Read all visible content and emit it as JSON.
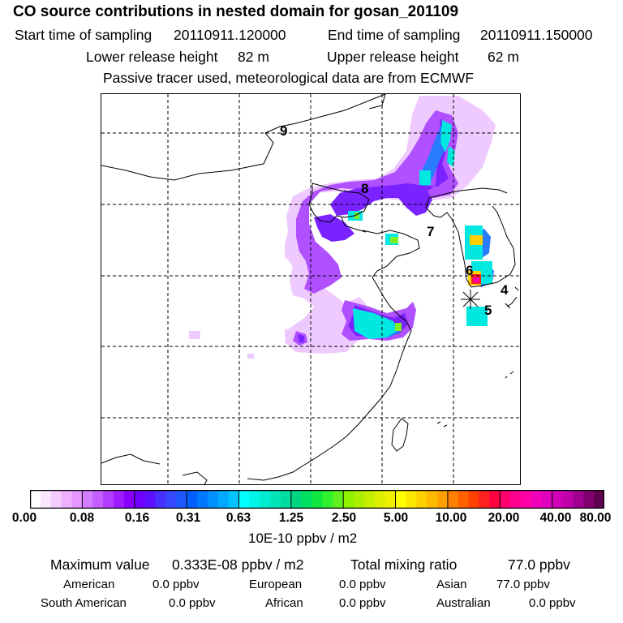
{
  "header": {
    "title": "CO  source contributions in nested domain for gosan_201109",
    "start_label": "Start time of sampling",
    "start_value": "20110911.120000",
    "end_label": "End time of sampling",
    "end_value": "20110911.150000",
    "lower_label": "Lower release height",
    "lower_value": "82 m",
    "upper_label": "Upper release height",
    "upper_value": "62 m",
    "note": "Passive tracer used, meteorological data are from ECMWF"
  },
  "map": {
    "labels": [
      "9",
      "8",
      "7",
      "6",
      "4",
      "5"
    ],
    "receptor_marker": "asterisk-receptor"
  },
  "colorbar": {
    "ticks": [
      "0.00",
      "0.08",
      "0.16",
      "0.31",
      "0.63",
      "1.25",
      "2.50",
      "5.00",
      "10.00",
      "20.00",
      "40.00",
      "80.00"
    ],
    "unit": "10E-10 ppbv / m2",
    "colors": [
      [
        "#ffffff",
        "#fbe6ff",
        "#f5ccff",
        "#eeb0ff",
        "#e696ff"
      ],
      [
        "#d37cff",
        "#c45eff",
        "#b23cff",
        "#9e1cff",
        "#8a00ff"
      ],
      [
        "#7000ff",
        "#5c10ff",
        "#4830ff",
        "#3548ff",
        "#2058ff"
      ],
      [
        "#0060ff",
        "#0078ff",
        "#0090ff",
        "#00a8ff",
        "#00c4ff"
      ],
      [
        "#00ffff",
        "#00f4e8",
        "#00ecd0",
        "#00e4b8",
        "#00dca0"
      ],
      [
        "#00d680",
        "#00e060",
        "#10e840",
        "#30f030",
        "#60f020"
      ],
      [
        "#90f000",
        "#aaf000",
        "#c4f000",
        "#dcf000",
        "#f0f000"
      ],
      [
        "#ffff00",
        "#ffe800",
        "#ffd000",
        "#ffb800",
        "#ffa000"
      ],
      [
        "#ff8000",
        "#ff6000",
        "#ff4000",
        "#ff2020",
        "#ff0040"
      ],
      [
        "#ff0070",
        "#ff0090",
        "#ff00a8",
        "#f000b8",
        "#e000c0"
      ],
      [
        "#d000b8",
        "#c000a8",
        "#a00090",
        "#800070",
        "#600050"
      ]
    ]
  },
  "stats": {
    "max_label": "Maximum value",
    "max_value": "0.333E-08 ppbv / m2",
    "total_label": "Total mixing ratio",
    "total_value": "77.0 ppbv",
    "regions": [
      {
        "name": "American",
        "value": "0.0 ppbv"
      },
      {
        "name": "European",
        "value": "0.0 ppbv"
      },
      {
        "name": "Asian",
        "value": "77.0 ppbv"
      },
      {
        "name": "South American",
        "value": "0.0 ppbv"
      },
      {
        "name": "African",
        "value": "0.0 ppbv"
      },
      {
        "name": "Australian",
        "value": "0.0 ppbv"
      }
    ]
  }
}
